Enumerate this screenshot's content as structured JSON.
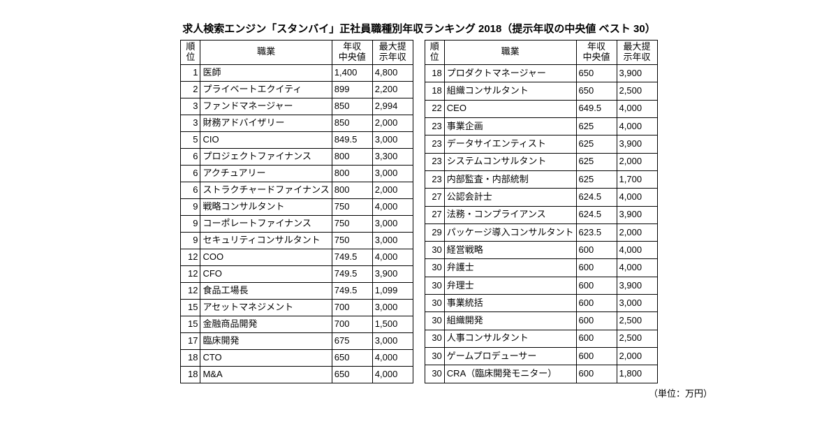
{
  "title": "求人検索エンジン「スタンバイ」正社員職種別年収ランキング 2018（提示年収の中央値 ベスト 30）",
  "footnote": "（単位：万円）",
  "headers": {
    "rank_l1": "順",
    "rank_l2": "位",
    "occupation": "職業",
    "median_l1": "年収",
    "median_l2": "中央値",
    "max_l1": "最大提",
    "max_l2": "示年収"
  },
  "left_rows": [
    {
      "rank": "1",
      "occupation": "医師",
      "median": "1,400",
      "max": "4,800"
    },
    {
      "rank": "2",
      "occupation": "プライベートエクイティ",
      "median": "899",
      "max": "2,200"
    },
    {
      "rank": "3",
      "occupation": "ファンドマネージャー",
      "median": "850",
      "max": "2,994"
    },
    {
      "rank": "3",
      "occupation": "財務アドバイザリー",
      "median": "850",
      "max": "2,000"
    },
    {
      "rank": "5",
      "occupation": "CIO",
      "median": "849.5",
      "max": "3,000"
    },
    {
      "rank": "6",
      "occupation": "プロジェクトファイナンス",
      "median": "800",
      "max": "3,300"
    },
    {
      "rank": "6",
      "occupation": "アクチュアリー",
      "median": "800",
      "max": "3,000"
    },
    {
      "rank": "6",
      "occupation": "ストラクチャードファイナンス",
      "median": "800",
      "max": "2,000"
    },
    {
      "rank": "9",
      "occupation": "戦略コンサルタント",
      "median": "750",
      "max": "4,000"
    },
    {
      "rank": "9",
      "occupation": "コーポレートファイナンス",
      "median": "750",
      "max": "3,000"
    },
    {
      "rank": "9",
      "occupation": "セキュリティコンサルタント",
      "median": "750",
      "max": "3,000"
    },
    {
      "rank": "12",
      "occupation": "COO",
      "median": "749.5",
      "max": "4,000"
    },
    {
      "rank": "12",
      "occupation": "CFO",
      "median": "749.5",
      "max": "3,900"
    },
    {
      "rank": "12",
      "occupation": "食品工場長",
      "median": "749.5",
      "max": "1,099"
    },
    {
      "rank": "15",
      "occupation": "アセットマネジメント",
      "median": "700",
      "max": "3,000"
    },
    {
      "rank": "15",
      "occupation": "金融商品開発",
      "median": "700",
      "max": "1,500"
    },
    {
      "rank": "17",
      "occupation": "臨床開発",
      "median": "675",
      "max": "3,000"
    },
    {
      "rank": "18",
      "occupation": "CTO",
      "median": "650",
      "max": "4,000"
    },
    {
      "rank": "18",
      "occupation": "M&A",
      "median": "650",
      "max": "4,000"
    }
  ],
  "right_rows": [
    {
      "rank": "18",
      "occupation": "プロダクトマネージャー",
      "median": "650",
      "max": "3,900"
    },
    {
      "rank": "18",
      "occupation": "組織コンサルタント",
      "median": "650",
      "max": "2,500"
    },
    {
      "rank": "22",
      "occupation": "CEO",
      "median": "649.5",
      "max": "4,000"
    },
    {
      "rank": "23",
      "occupation": "事業企画",
      "median": "625",
      "max": "4,000"
    },
    {
      "rank": "23",
      "occupation": "データサイエンティスト",
      "median": "625",
      "max": "3,900"
    },
    {
      "rank": "23",
      "occupation": "システムコンサルタント",
      "median": "625",
      "max": "2,000"
    },
    {
      "rank": "23",
      "occupation": "内部監査・内部統制",
      "median": "625",
      "max": "1,700"
    },
    {
      "rank": "27",
      "occupation": "公認会計士",
      "median": "624.5",
      "max": "4,000"
    },
    {
      "rank": "27",
      "occupation": "法務・コンプライアンス",
      "median": "624.5",
      "max": "3,900"
    },
    {
      "rank": "29",
      "occupation": "パッケージ導入コンサルタント",
      "median": "623.5",
      "max": "2,000"
    },
    {
      "rank": "30",
      "occupation": "経営戦略",
      "median": "600",
      "max": "4,000"
    },
    {
      "rank": "30",
      "occupation": "弁護士",
      "median": "600",
      "max": "4,000"
    },
    {
      "rank": "30",
      "occupation": "弁理士",
      "median": "600",
      "max": "3,900"
    },
    {
      "rank": "30",
      "occupation": "事業統括",
      "median": "600",
      "max": "3,000"
    },
    {
      "rank": "30",
      "occupation": "組織開発",
      "median": "600",
      "max": "2,500"
    },
    {
      "rank": "30",
      "occupation": "人事コンサルタント",
      "median": "600",
      "max": "2,500"
    },
    {
      "rank": "30",
      "occupation": "ゲームプロデューサー",
      "median": "600",
      "max": "2,000"
    },
    {
      "rank": "30",
      "occupation": "CRA（臨床開発モニター）",
      "median": "600",
      "max": "1,800"
    }
  ]
}
